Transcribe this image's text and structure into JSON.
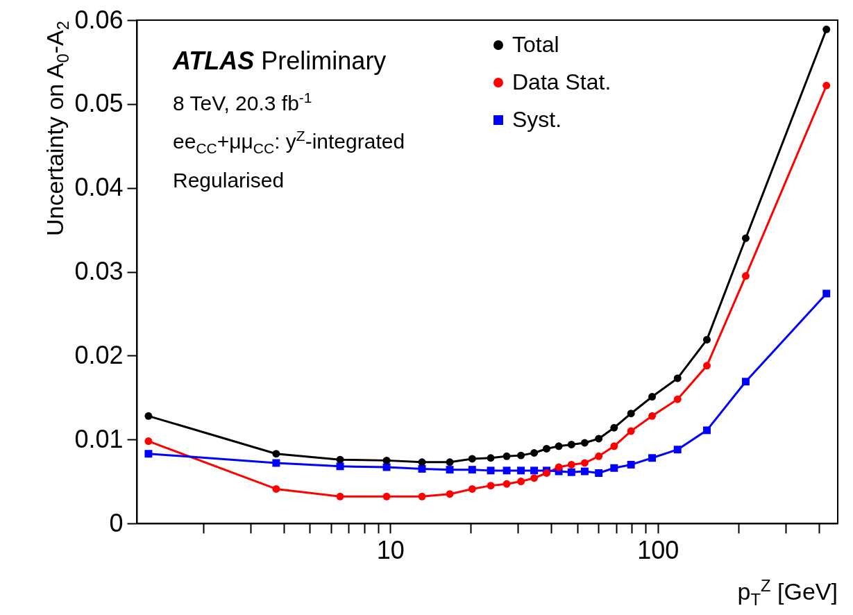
{
  "chart_data": {
    "type": "line",
    "xlabel": "p$_{T}$$^{Z}$ [GeV]",
    "ylabel": "Uncertainty on A$_{0}$-A$_{2}$",
    "annotations": [
      "ATLAS Preliminary",
      "8 TeV, 20.3 fb$^{-1}$",
      "ee$_{CC}$+μμ$_{CC}$: y$^{Z}$-integrated",
      "Regularised"
    ],
    "x": [
      1.25,
      3.75,
      6.5,
      9.7,
      13.15,
      16.7,
      20.25,
      23.75,
      27.25,
      30.8,
      34.5,
      38.4,
      42.65,
      47.55,
      53.3,
      60.15,
      68.65,
      79.4,
      95.2,
      118.5,
      152.5,
      213,
      426.5
    ],
    "series": [
      {
        "name": "Total",
        "color": "#000000",
        "marker": "circle",
        "values": [
          0.0128,
          0.0083,
          0.0076,
          0.0075,
          0.0073,
          0.0073,
          0.0077,
          0.0078,
          0.008,
          0.0081,
          0.0084,
          0.0089,
          0.0092,
          0.0094,
          0.0096,
          0.0101,
          0.0114,
          0.0131,
          0.0151,
          0.0173,
          0.0219,
          0.034,
          0.0589
        ]
      },
      {
        "name": "Data Stat.",
        "color": "#ff0000",
        "marker": "circle",
        "values": [
          0.0098,
          0.0041,
          0.0032,
          0.0032,
          0.0032,
          0.0035,
          0.0041,
          0.0045,
          0.0047,
          0.005,
          0.0054,
          0.006,
          0.0067,
          0.007,
          0.0072,
          0.008,
          0.0092,
          0.011,
          0.0128,
          0.0148,
          0.0188,
          0.0295,
          0.0522
        ]
      },
      {
        "name": "Syst.",
        "color": "#0000ff",
        "marker": "square",
        "values": [
          0.0083,
          0.0072,
          0.0068,
          0.0067,
          0.0065,
          0.0064,
          0.0064,
          0.0063,
          0.0063,
          0.0063,
          0.0063,
          0.0063,
          0.0062,
          0.0061,
          0.0062,
          0.006,
          0.0066,
          0.007,
          0.0078,
          0.0088,
          0.0111,
          0.0169,
          0.0274
        ]
      }
    ],
    "log": "x",
    "xlim": [
      1.13,
      470
    ],
    "xticks": [
      {
        "value": 2,
        "label": null
      },
      {
        "value": 3,
        "label": null
      },
      {
        "value": 4,
        "label": null
      },
      {
        "value": 5,
        "label": null
      },
      {
        "value": 6,
        "label": null
      },
      {
        "value": 7,
        "label": null
      },
      {
        "value": 8,
        "label": null
      },
      {
        "value": 9,
        "label": null
      },
      10,
      {
        "value": 20,
        "label": null
      },
      {
        "value": 30,
        "label": null
      },
      {
        "value": 40,
        "label": null
      },
      {
        "value": 50,
        "label": null
      },
      {
        "value": 60,
        "label": null
      },
      {
        "value": 70,
        "label": null
      },
      {
        "value": 80,
        "label": null
      },
      {
        "value": 90,
        "label": null
      },
      100,
      {
        "value": 200,
        "label": null
      },
      {
        "value": 300,
        "label": null
      },
      {
        "value": 400,
        "label": null
      }
    ],
    "ylim": [
      0,
      0.06
    ],
    "yticks": [
      0,
      0.01,
      0.02,
      0.03,
      0.04,
      0.05,
      0.06
    ],
    "grid": false,
    "legend": "top",
    "line_style": "solid"
  }
}
